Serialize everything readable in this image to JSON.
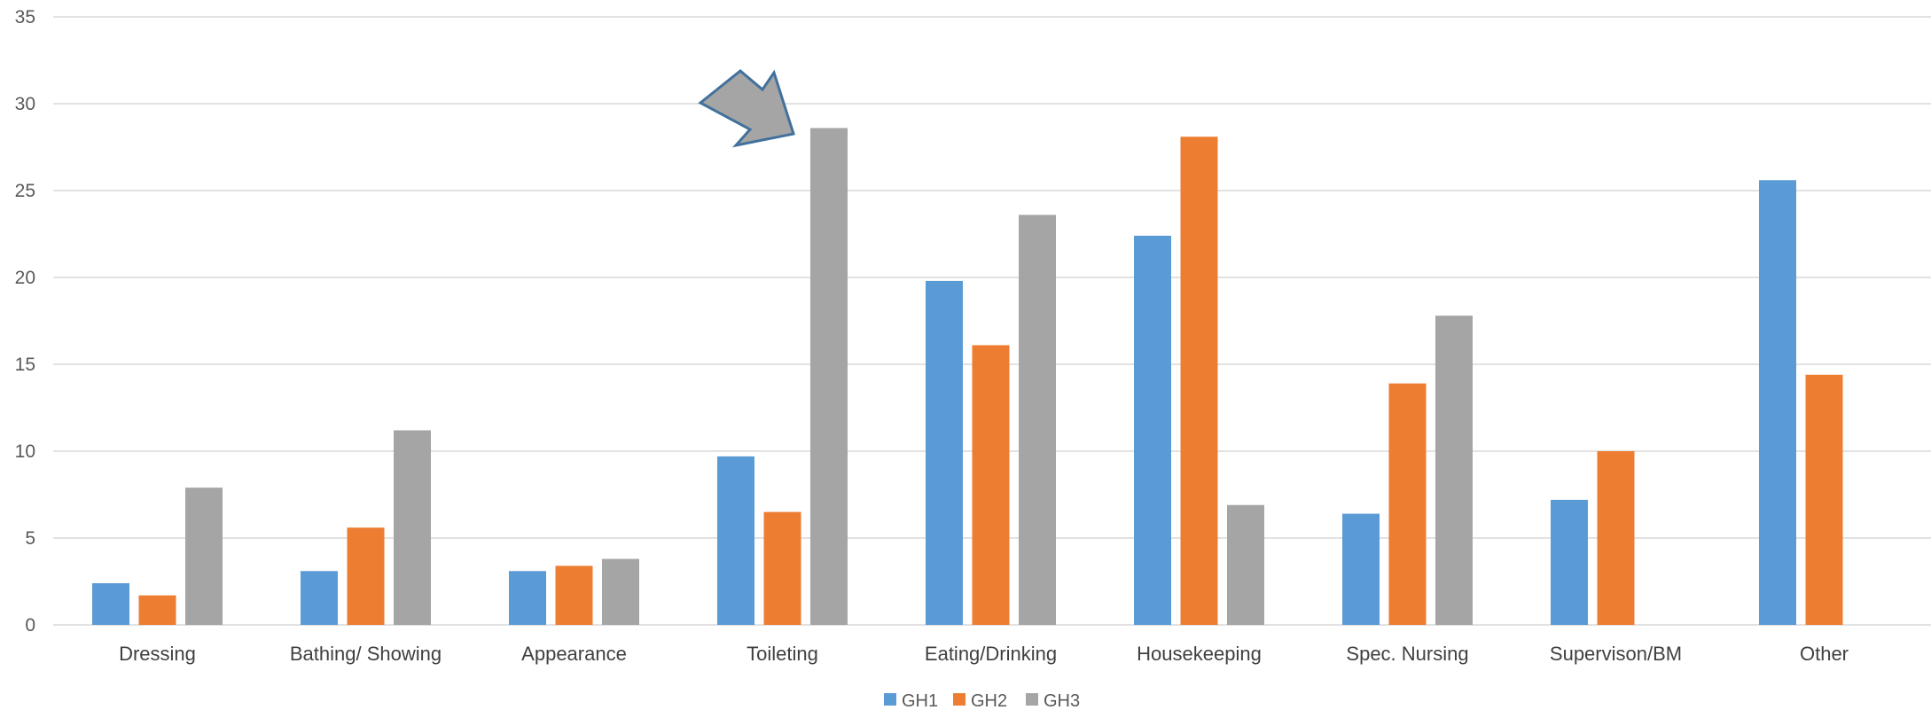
{
  "chart_data": {
    "type": "bar",
    "categories": [
      "Dressing",
      "Bathing/ Showing",
      "Appearance",
      "Toileting",
      "Eating/Drinking",
      "Housekeeping",
      "Spec. Nursing",
      "Supervison/BM",
      "Other"
    ],
    "series": [
      {
        "name": "GH1",
        "color": "#5b9bd5",
        "values": [
          2.4,
          3.1,
          3.1,
          9.7,
          19.8,
          22.4,
          6.4,
          7.2,
          25.6
        ]
      },
      {
        "name": "GH2",
        "color": "#ed7d31",
        "values": [
          1.7,
          5.6,
          3.4,
          6.5,
          16.1,
          28.1,
          13.9,
          10.0,
          14.4
        ]
      },
      {
        "name": "GH3",
        "color": "#a5a5a5",
        "values": [
          7.9,
          11.2,
          3.8,
          28.6,
          23.6,
          6.9,
          17.8,
          null,
          null
        ]
      }
    ],
    "yticks": [
      "0",
      "5",
      "10",
      "15",
      "20",
      "25",
      "30",
      "35"
    ],
    "ylim": [
      0,
      35
    ],
    "grid": true,
    "legend_position": "bottom",
    "annotation": {
      "type": "arrow",
      "color": "#a5a5a5",
      "stroke": "#41719c",
      "points_to": "Toileting GH3"
    }
  }
}
